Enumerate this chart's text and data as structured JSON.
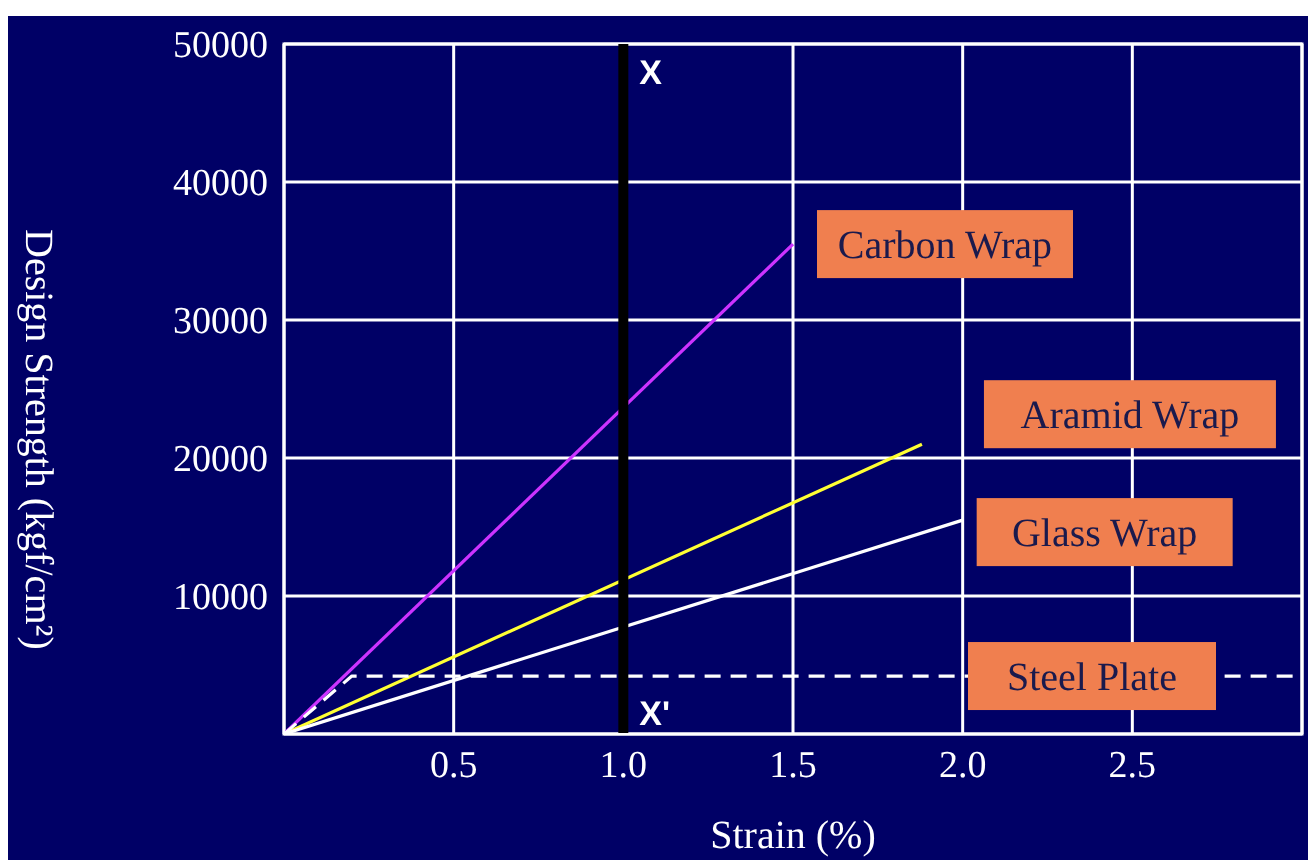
{
  "chart_data": {
    "type": "line",
    "xlabel": "Strain (%)",
    "ylabel": "Design Strength (kgf/cm²)",
    "series": [
      {
        "name": "Carbon Wrap",
        "color": "#cc33ff",
        "x": [
          0,
          1.5
        ],
        "values": [
          0,
          35500
        ]
      },
      {
        "name": "Aramid Wrap",
        "color": "#ffff33",
        "x": [
          0,
          1.88
        ],
        "values": [
          0,
          21000
        ]
      },
      {
        "name": "Glass Wrap",
        "color": "#ffffff",
        "x": [
          0,
          2.0
        ],
        "values": [
          0,
          15500
        ]
      },
      {
        "name": "Steel Plate",
        "color": "#ffffff",
        "x": [
          0,
          0.2,
          3.0
        ],
        "values": [
          0,
          4200,
          4200
        ],
        "line_style": "dashed"
      }
    ],
    "xlim": [
      0,
      3.0
    ],
    "xticks": [
      0.5,
      {
        "value": 1,
        "label": "1.0"
      },
      1.5,
      {
        "value": 2,
        "label": "2.0"
      },
      2.5
    ],
    "ylim": [
      0,
      50000
    ],
    "yticks": [
      10000,
      20000,
      30000,
      40000,
      50000
    ],
    "ref_lines": [
      {
        "axis": "x",
        "value": 1.0,
        "color": "#000000"
      }
    ],
    "annotations": [
      {
        "text": "X",
        "x": 1.0,
        "y": 48000
      },
      {
        "text": "X'",
        "x": 1.0,
        "y": 1500
      }
    ],
    "grid": true,
    "marker": "none",
    "line_style": "solid"
  }
}
